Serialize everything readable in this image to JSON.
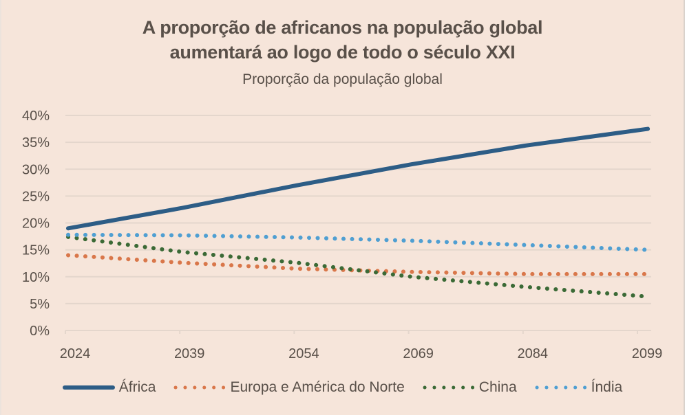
{
  "chart_data": {
    "type": "line",
    "title_lines": [
      "A proporção de africanos na população global",
      "aumentará ao logo de todo o século XXI"
    ],
    "subtitle": "Proporção da população global",
    "xlabel": "",
    "ylabel": "",
    "x": [
      2024,
      2039,
      2054,
      2069,
      2084,
      2100
    ],
    "x_ticks": [
      "2024",
      "2039",
      "2054",
      "2069",
      "2084",
      "2099"
    ],
    "x_tick_values": [
      2024,
      2039,
      2054,
      2069,
      2084,
      2099
    ],
    "xlim": [
      2024,
      2099
    ],
    "y_ticks": [
      "0%",
      "5%",
      "10%",
      "15%",
      "20%",
      "25%",
      "30%",
      "35%",
      "40%"
    ],
    "y_tick_values": [
      0,
      5,
      10,
      15,
      20,
      25,
      30,
      35,
      40
    ],
    "ylim": [
      0,
      40
    ],
    "y_unit": "%",
    "grid": true,
    "legend_position": "bottom",
    "series": [
      {
        "name": "África",
        "style": "solid",
        "color": "#2d5d86",
        "values": [
          19.0,
          22.8,
          27.0,
          30.9,
          34.4,
          37.5
        ]
      },
      {
        "name": "Europa e América do Norte",
        "style": "dotted",
        "color": "#d9774a",
        "values": [
          14.0,
          12.6,
          11.5,
          10.9,
          10.5,
          10.5
        ]
      },
      {
        "name": "China",
        "style": "dotted",
        "color": "#3b6a36",
        "values": [
          17.4,
          14.6,
          12.6,
          10.0,
          8.1,
          6.3
        ]
      },
      {
        "name": "Índia",
        "style": "dotted",
        "color": "#4f9fd2",
        "values": [
          17.8,
          17.7,
          17.3,
          16.7,
          15.9,
          15.0
        ]
      }
    ]
  }
}
